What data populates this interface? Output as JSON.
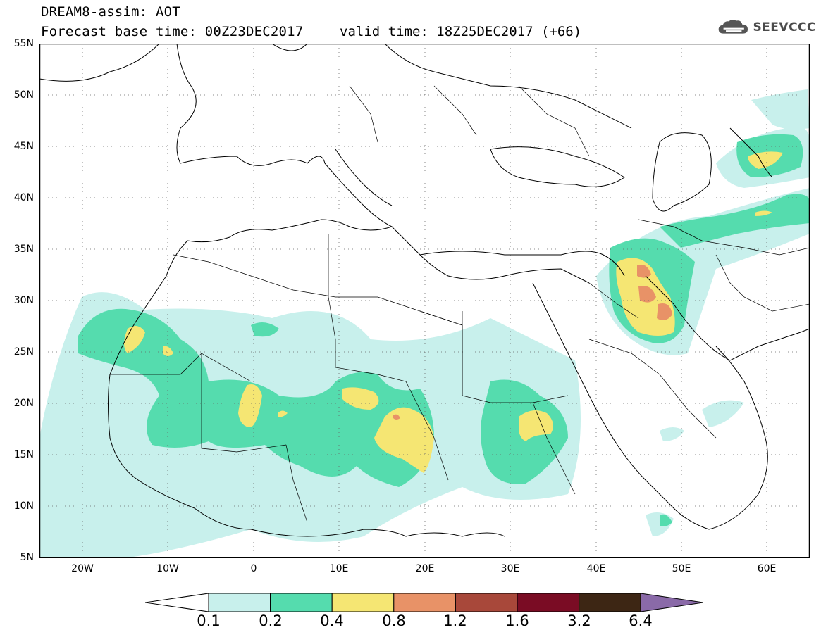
{
  "header": {
    "line1": "DREAM8-assim: AOT",
    "line2": "Forecast base time: 00Z23DEC2017",
    "valid": "valid time: 18Z25DEC2017 (+66)"
  },
  "logo": {
    "icon": "cloud-logo-icon",
    "text": "SEEVCCC"
  },
  "map": {
    "region": "North Africa, Mediterranean, Middle East",
    "lat_range": [
      5,
      55
    ],
    "lon_range": [
      -25,
      65
    ],
    "lat_labels": [
      "55N",
      "50N",
      "45N",
      "40N",
      "35N",
      "30N",
      "25N",
      "20N",
      "15N",
      "10N",
      "5N"
    ],
    "lon_labels": [
      "20W",
      "10W",
      "0",
      "10E",
      "20E",
      "30E",
      "40E",
      "50E",
      "60E"
    ],
    "gridlines": "dotted"
  },
  "colorbar": {
    "labels": [
      "0.1",
      "0.2",
      "0.4",
      "0.8",
      "1.2",
      "1.6",
      "3.2",
      "6.4"
    ],
    "colors": [
      "#c8f0ec",
      "#55dcae",
      "#f5e673",
      "#e89267",
      "#a8483a",
      "#7a0c24",
      "#3d2614",
      "#8a6aa8"
    ],
    "low_color": "#ffffff",
    "high_color": "#8a6aa8"
  }
}
